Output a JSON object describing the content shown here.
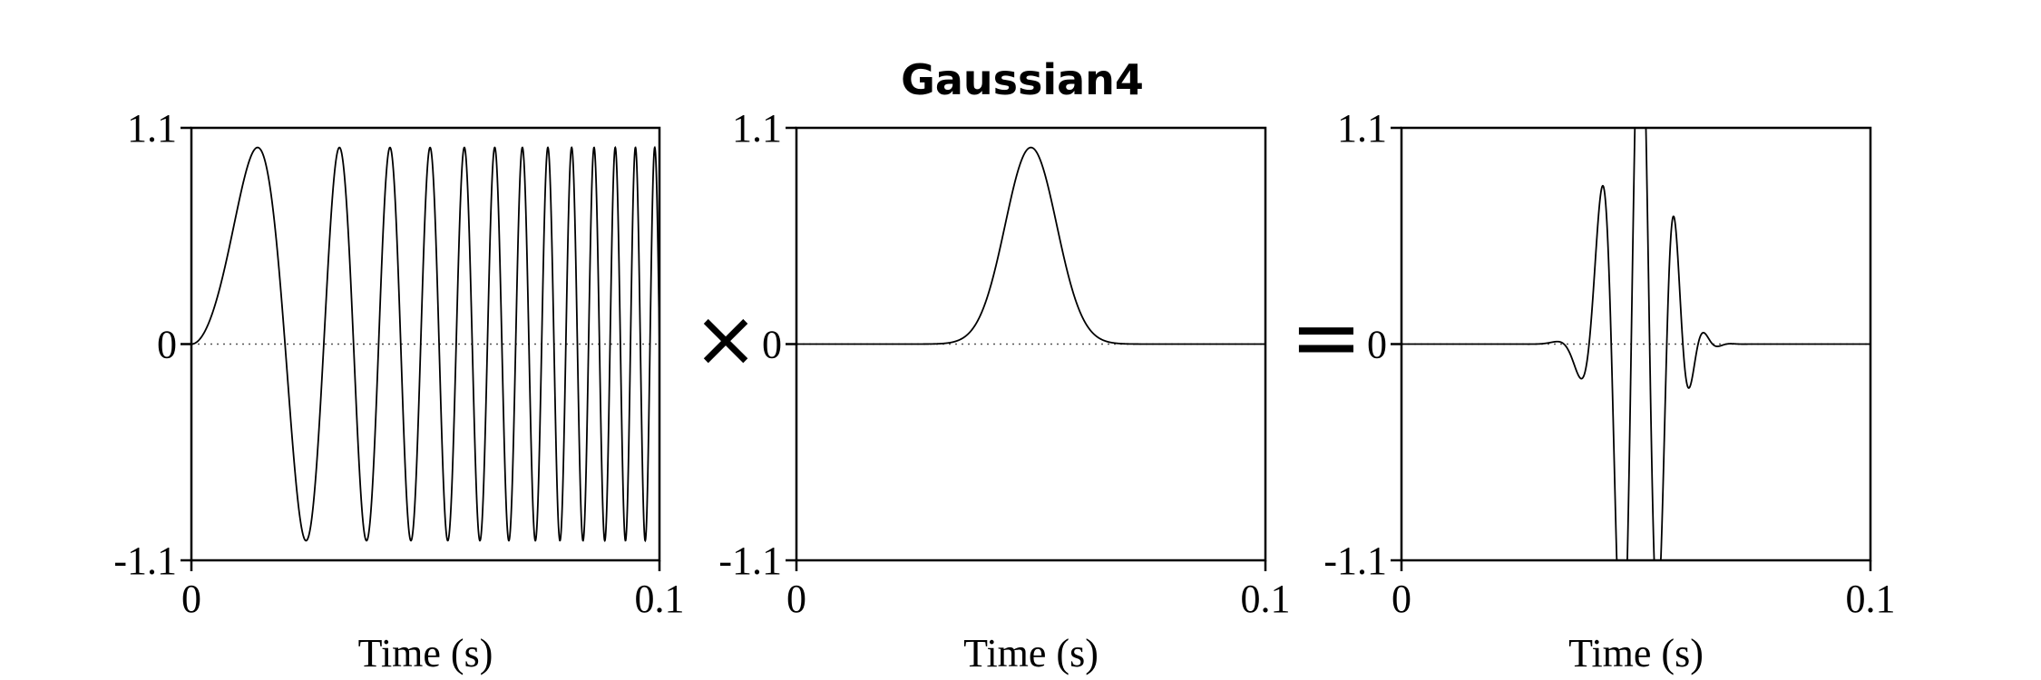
{
  "chart_data": {
    "title": "Gaussian4",
    "operators": [
      "×",
      "="
    ],
    "panels": [
      {
        "type": "line",
        "signal": "chirp",
        "xlabel": "Time (s)",
        "xlim": [
          0,
          0.1
        ],
        "ylim": [
          -1.1,
          1.1
        ],
        "xticks": [
          "0",
          "0.1"
        ],
        "yticks": [
          "1.1",
          "0",
          "-1.1"
        ],
        "zero_line": "dotted",
        "amplitude": 1.0,
        "start_frequency_hz": 0,
        "end_frequency_hz": 250,
        "peak_times_s": [
          0.0155,
          0.0345,
          0.0475,
          0.0575,
          0.0655,
          0.0725,
          0.079,
          0.085,
          0.0905,
          0.0955
        ],
        "trough_times_s": [
          0.027,
          0.041,
          0.0525,
          0.0615,
          0.069,
          0.0758,
          0.082,
          0.0878,
          0.093,
          0.0985
        ]
      },
      {
        "type": "line",
        "signal": "gaussian",
        "xlabel": "Time (s)",
        "xlim": [
          0,
          0.1
        ],
        "ylim": [
          -1.1,
          1.1
        ],
        "xticks": [
          "0",
          "0.1"
        ],
        "yticks": [
          "1.1",
          "0",
          "-1.1"
        ],
        "zero_line": "dotted",
        "amplitude": 1.0,
        "center_s": 0.05,
        "sigma_s": 0.0055
      },
      {
        "type": "line",
        "signal": "product",
        "xlabel": "Time (s)",
        "xlim": [
          0,
          0.1
        ],
        "ylim": [
          -1.1,
          1.1
        ],
        "xticks": [
          "0",
          "0.1"
        ],
        "yticks": [
          "1.1",
          "0",
          "-1.1"
        ],
        "zero_line": "dotted",
        "notable_points": [
          {
            "x": 0.0365,
            "y": 0.02
          },
          {
            "x": 0.041,
            "y": -0.32
          },
          {
            "x": 0.0475,
            "y": 0.89
          },
          {
            "x": 0.052,
            "y": -0.9
          },
          {
            "x": 0.0565,
            "y": 0.42
          },
          {
            "x": 0.06,
            "y": -0.1
          }
        ]
      }
    ]
  }
}
